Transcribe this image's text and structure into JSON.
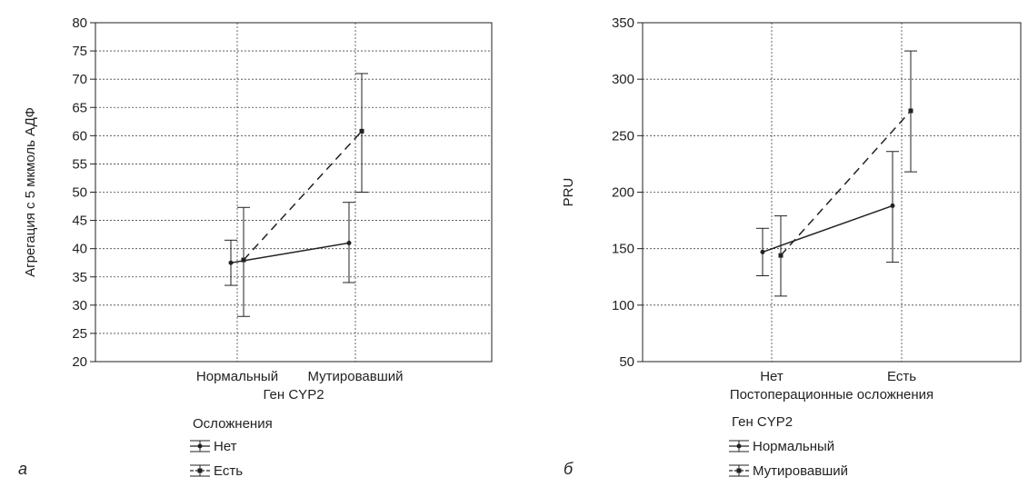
{
  "panels": [
    {
      "panel_label": "а",
      "chart_data": {
        "type": "line",
        "ylabel": "Агрегация с 5 мкмоль АДФ",
        "xlabel": "Ген CYP2",
        "categories": [
          "Нормальный",
          "Мутировавший"
        ],
        "ylim": [
          20,
          80
        ],
        "yticks": [
          20,
          25,
          30,
          35,
          40,
          45,
          50,
          55,
          60,
          65,
          70,
          75,
          80
        ],
        "grid": true,
        "legend_title": "Осложнения",
        "legend_position": "below",
        "series": [
          {
            "name": "Нет",
            "style": "solid",
            "marker": "circle",
            "values": [
              37.5,
              41
            ],
            "lower": [
              33.5,
              34
            ],
            "upper": [
              41.5,
              48.2
            ]
          },
          {
            "name": "Есть",
            "style": "dashed",
            "marker": "square",
            "values": [
              38,
              60.8
            ],
            "lower": [
              28,
              50
            ],
            "upper": [
              47.3,
              71
            ]
          }
        ]
      }
    },
    {
      "panel_label": "б",
      "chart_data": {
        "type": "line",
        "ylabel": "PRU",
        "xlabel": "Постоперационные осложнения",
        "categories": [
          "Нет",
          "Есть"
        ],
        "ylim": [
          50,
          350
        ],
        "yticks": [
          50,
          100,
          150,
          200,
          250,
          300,
          350
        ],
        "grid": true,
        "legend_title": "Ген CYP2",
        "legend_position": "below",
        "series": [
          {
            "name": "Нормальный",
            "style": "solid",
            "marker": "circle",
            "values": [
              147,
              188
            ],
            "lower": [
              126,
              138
            ],
            "upper": [
              168,
              236
            ]
          },
          {
            "name": "Мутировавший",
            "style": "dashed",
            "marker": "square",
            "values": [
              144,
              272
            ],
            "lower": [
              108,
              218
            ],
            "upper": [
              179,
              325
            ]
          }
        ]
      }
    }
  ]
}
